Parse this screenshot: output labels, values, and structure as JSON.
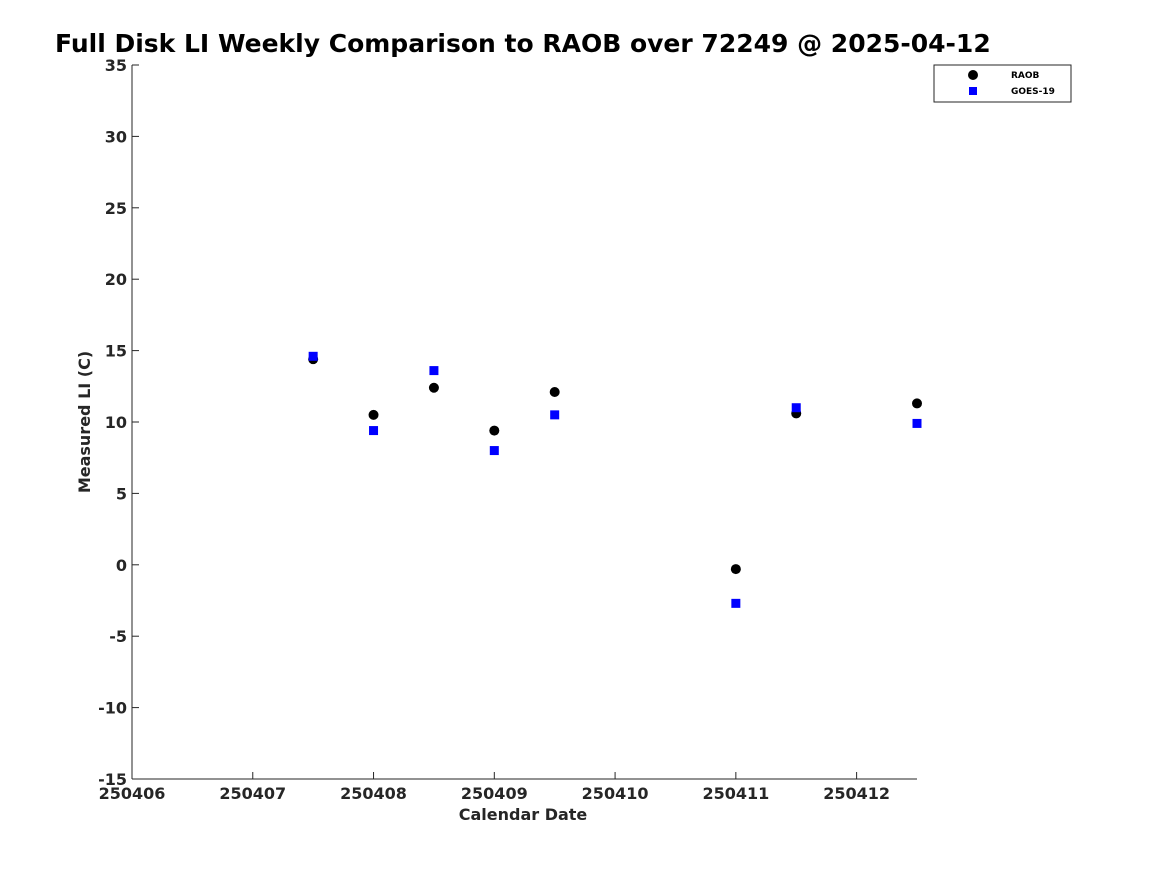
{
  "chart_data": {
    "type": "scatter",
    "title": "Full Disk LI Weekly Comparison to RAOB over 72249 @ 2025-04-12",
    "xlabel": "Calendar Date",
    "ylabel": "Measured LI (C)",
    "xlim": [
      250406,
      250412.5
    ],
    "ylim": [
      -15,
      35
    ],
    "xticks": [
      250406,
      250407,
      250408,
      250409,
      250410,
      250411,
      250412
    ],
    "xtick_labels": [
      "250406",
      "250407",
      "250408",
      "250409",
      "250410",
      "250411",
      "250412"
    ],
    "yticks": [
      -15,
      -10,
      -5,
      0,
      5,
      10,
      15,
      20,
      25,
      30,
      35
    ],
    "ytick_labels": [
      "-15",
      "-10",
      "-5",
      "0",
      "5",
      "10",
      "15",
      "20",
      "25",
      "30",
      "35"
    ],
    "grid": false,
    "legend_position": "top-right",
    "series": [
      {
        "name": "RAOB",
        "marker": "circle",
        "color": "#000000",
        "x": [
          250407.5,
          250408,
          250408.5,
          250409,
          250409.5,
          250411,
          250411.5,
          250412.5
        ],
        "y": [
          14.4,
          10.5,
          12.4,
          9.4,
          12.1,
          -0.3,
          10.6,
          11.3
        ]
      },
      {
        "name": "GOES-19",
        "marker": "square",
        "color": "#0000ff",
        "x": [
          250407.5,
          250408,
          250408.5,
          250409,
          250409.5,
          250411,
          250411.5,
          250412.5
        ],
        "y": [
          14.6,
          9.4,
          13.6,
          8.0,
          10.5,
          -2.7,
          11.0,
          9.9
        ]
      }
    ]
  }
}
